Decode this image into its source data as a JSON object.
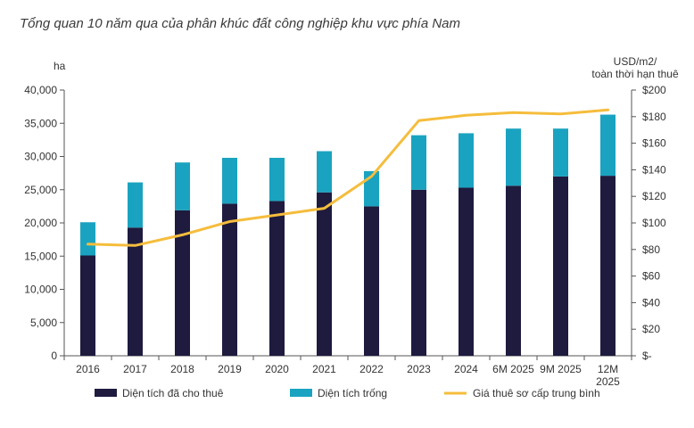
{
  "chart_data": {
    "type": "bar",
    "title": "Tổng quan 10 năm qua của phân khúc đất công nghiệp khu vực phía Nam",
    "categories": [
      "2016",
      "2017",
      "2018",
      "2019",
      "2020",
      "2021",
      "2022",
      "2023",
      "2024",
      "6M 2025",
      "9M 2025",
      "12M 2025"
    ],
    "stacked": true,
    "series": [
      {
        "name": "Diện tích đã cho thuê",
        "kind": "bar",
        "axis": "left",
        "color": "#1e1b3f",
        "values": [
          15100,
          19300,
          21900,
          22900,
          23300,
          24600,
          22500,
          25000,
          25300,
          25600,
          27000,
          27100
        ]
      },
      {
        "name": "Diện tích trống",
        "kind": "bar",
        "axis": "left",
        "color": "#1aa3c0",
        "values": [
          5000,
          6800,
          7200,
          6900,
          6500,
          6200,
          5300,
          8200,
          8200,
          8600,
          7200,
          9200
        ]
      },
      {
        "name": "Giá thuê sơ cấp trung bình",
        "kind": "line",
        "axis": "right",
        "color": "#f5bd3c",
        "values": [
          84,
          83,
          91,
          101,
          106,
          111,
          135,
          177,
          181,
          183,
          182,
          185
        ]
      }
    ],
    "y_left": {
      "label": "ha",
      "min": 0,
      "max": 40000,
      "ticks": [
        0,
        5000,
        10000,
        15000,
        20000,
        25000,
        30000,
        35000,
        40000
      ],
      "tick_labels": [
        "0",
        "5,000",
        "10,000",
        "15,000",
        "20,000",
        "25,000",
        "30,000",
        "35,000",
        "40,000"
      ]
    },
    "y_right": {
      "label_lines": [
        "USD/m2/",
        "toàn thời hạn thuê"
      ],
      "min": 0,
      "max": 200,
      "ticks": [
        0,
        20,
        40,
        60,
        80,
        100,
        120,
        140,
        160,
        180,
        200
      ],
      "tick_labels": [
        "$-",
        "$20",
        "$40",
        "$60",
        "$80",
        "$100",
        "$120",
        "$140",
        "$160",
        "$180",
        "$200"
      ]
    },
    "x_tick_lines": [
      [
        "2016"
      ],
      [
        "2017"
      ],
      [
        "2018"
      ],
      [
        "2019"
      ],
      [
        "2020"
      ],
      [
        "2021"
      ],
      [
        "2022"
      ],
      [
        "2023"
      ],
      [
        "2024"
      ],
      [
        "6M 2025"
      ],
      [
        "9M 2025"
      ],
      [
        "12M",
        "2025"
      ]
    ],
    "grid": false,
    "legend_position": "bottom"
  }
}
